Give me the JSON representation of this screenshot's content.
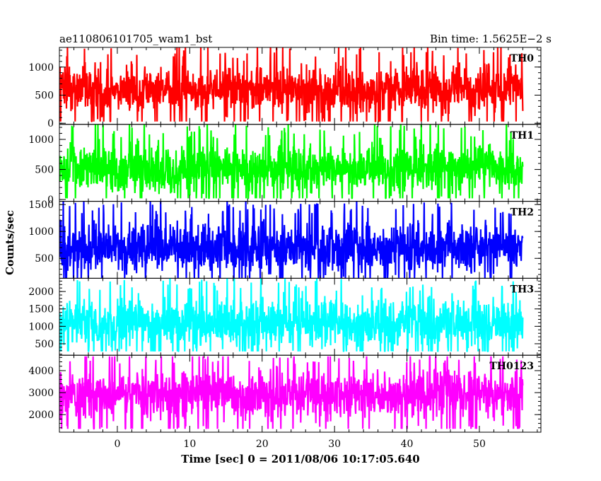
{
  "header": {
    "title": "ae110806101705_wam1_bst",
    "bin_time": "Bin time: 1.5625E−2 s"
  },
  "chart_data": {
    "type": "line",
    "xlabel": "Time [sec] 0 = 2011/08/06 10:17:05.640",
    "ylabel": "Counts/sec",
    "xlim": [
      -8.0,
      58.5
    ],
    "data_x_range": [
      -8.0,
      56.0
    ],
    "x_ticks": [
      0,
      10,
      20,
      30,
      40,
      50
    ],
    "x_tick_labels": [
      "0",
      "10",
      "20",
      "30",
      "40",
      "50"
    ],
    "panels": [
      {
        "name": "TH0",
        "color": "#ff0000",
        "ylim": [
          -20,
          1350
        ],
        "y_ticks": [
          0,
          500,
          1000
        ],
        "y_tick_labels": [
          "0",
          "500",
          "1000"
        ],
        "mean": 600,
        "min": 30,
        "max": 1350
      },
      {
        "name": "TH1",
        "color": "#00ff00",
        "ylim": [
          -30,
          1250
        ],
        "y_ticks": [
          0,
          500,
          1000
        ],
        "y_tick_labels": [
          "0",
          "500",
          "1000"
        ],
        "mean": 520,
        "min": 20,
        "max": 1250
      },
      {
        "name": "TH2",
        "color": "#0000ff",
        "ylim": [
          130,
          1560
        ],
        "y_ticks": [
          500,
          1000,
          1500
        ],
        "y_tick_labels": [
          "500",
          "1000",
          "1500"
        ],
        "mean": 700,
        "min": 130,
        "max": 1560
      },
      {
        "name": "TH3",
        "color": "#00ffff",
        "ylim": [
          170,
          2380
        ],
        "y_ticks": [
          500,
          1000,
          1500,
          2000
        ],
        "y_tick_labels": [
          "500",
          "1000",
          "1500",
          "2000"
        ],
        "mean": 1100,
        "min": 280,
        "max": 2380
      },
      {
        "name": "TH0123",
        "color": "#ff00ff",
        "ylim": [
          1200,
          4700
        ],
        "y_ticks": [
          2000,
          3000,
          4000
        ],
        "y_tick_labels": [
          "2000",
          "3000",
          "4000"
        ],
        "mean": 2900,
        "min": 1350,
        "max": 4650
      }
    ]
  }
}
